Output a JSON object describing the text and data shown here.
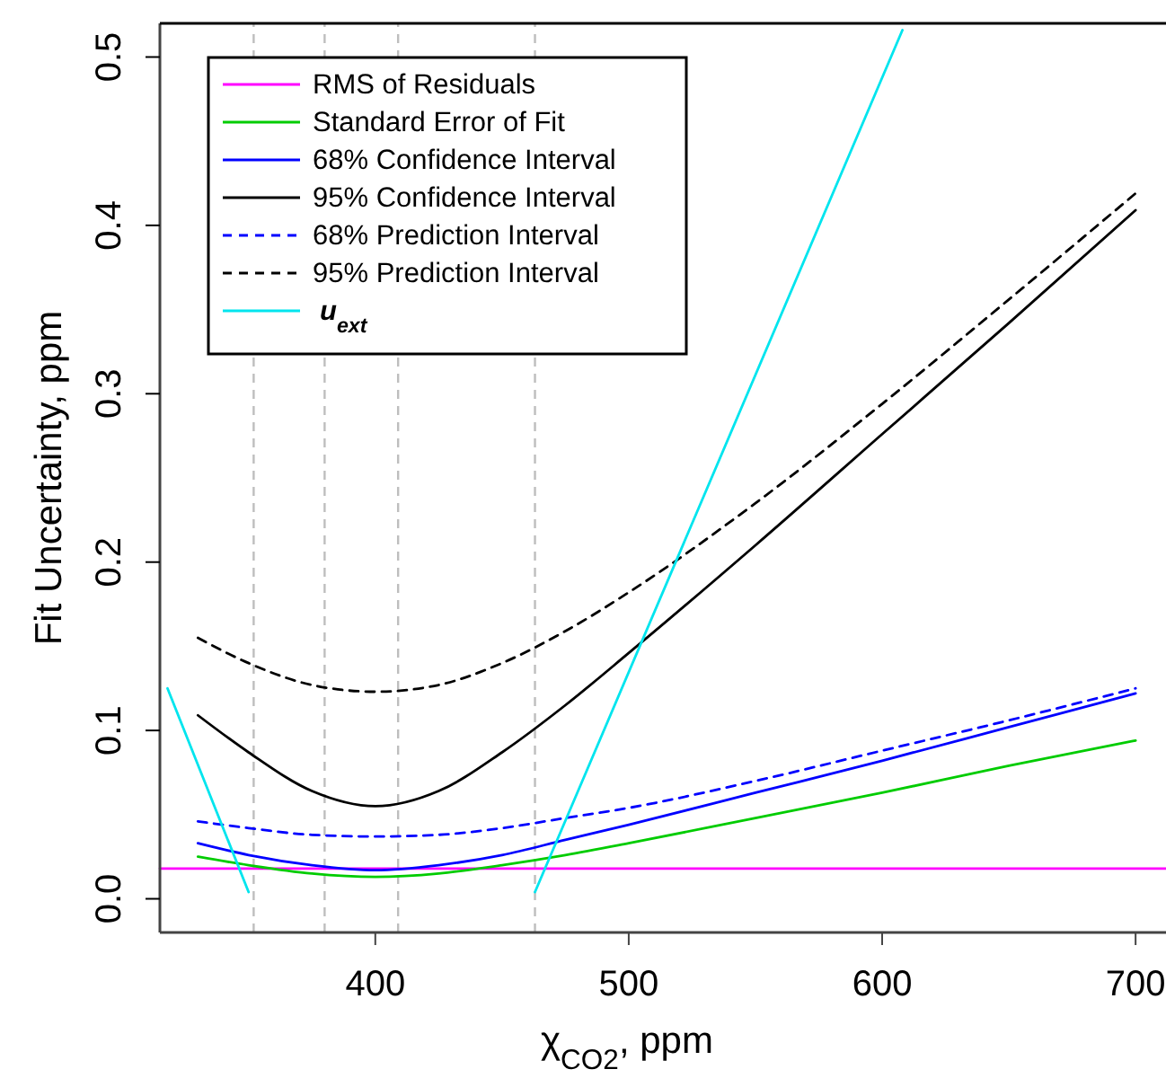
{
  "chart_data": {
    "type": "line",
    "xlabel": "χ$_{CO2}$, ppm",
    "ylabel": "Fit Uncertainty, ppm",
    "xlim": [
      315,
      712
    ],
    "ylim": [
      -0.02,
      0.52
    ],
    "xticks": [
      400,
      500,
      600,
      700
    ],
    "yticks": [
      {
        "value": 0,
        "label": "0.0"
      },
      {
        "value": 0.1,
        "label": "0.1"
      },
      {
        "value": 0.2,
        "label": "0.2"
      },
      {
        "value": 0.3,
        "label": "0.3"
      },
      {
        "value": 0.4,
        "label": "0.4"
      },
      {
        "value": 0.5,
        "label": "0.5"
      }
    ],
    "grid": false,
    "legend": "top left",
    "marker": "none",
    "x": [
      330,
      350,
      375,
      400,
      425,
      450,
      475,
      500,
      550,
      600,
      650,
      700
    ],
    "series": [
      {
        "name": "RMS of Residuals",
        "color": "#ff00ff",
        "x": [
          315,
          712
        ],
        "values": [
          0.018,
          0.018
        ]
      },
      {
        "name": "Standard Error of Fit",
        "color": "#00cc00",
        "values": [
          0.025,
          0.02,
          0.015,
          0.013,
          0.015,
          0.02,
          0.026,
          0.033,
          0.048,
          0.063,
          0.079,
          0.094
        ]
      },
      {
        "name": "68% Confidence Interval",
        "color": "#0000ff",
        "values": [
          0.033,
          0.026,
          0.02,
          0.017,
          0.02,
          0.026,
          0.035,
          0.044,
          0.063,
          0.082,
          0.102,
          0.122
        ]
      },
      {
        "name": "95% Confidence Interval",
        "color": "#000000",
        "values": [
          0.109,
          0.087,
          0.064,
          0.055,
          0.064,
          0.087,
          0.115,
          0.146,
          0.21,
          0.276,
          0.342,
          0.409
        ]
      },
      {
        "name": "68% Prediction Interval",
        "color": "#0000ff",
        "line_style": "dashed",
        "values": [
          0.046,
          0.042,
          0.038,
          0.037,
          0.038,
          0.042,
          0.048,
          0.054,
          0.07,
          0.088,
          0.106,
          0.125
        ]
      },
      {
        "name": "95% Prediction Interval",
        "color": "#000000",
        "line_style": "dashed",
        "values": [
          0.155,
          0.14,
          0.127,
          0.123,
          0.127,
          0.14,
          0.159,
          0.182,
          0.235,
          0.294,
          0.356,
          0.419
        ]
      },
      {
        "name": "u$_{ext}$",
        "color": "#00e5ee",
        "x": [
          318,
          350,
          406,
          463,
          608
        ],
        "values": [
          0.125,
          0.004,
          null,
          0.004,
          0.516
        ]
      }
    ],
    "ref_lines": [
      {
        "axis": "x",
        "value": 352,
        "color": "#bebebe",
        "line_style": "dashed"
      },
      {
        "axis": "x",
        "value": 380,
        "color": "#bebebe",
        "line_style": "dashed"
      },
      {
        "axis": "x",
        "value": 409,
        "color": "#bebebe",
        "line_style": "dashed"
      },
      {
        "axis": "x",
        "value": 463,
        "color": "#bebebe",
        "line_style": "dashed"
      }
    ]
  }
}
